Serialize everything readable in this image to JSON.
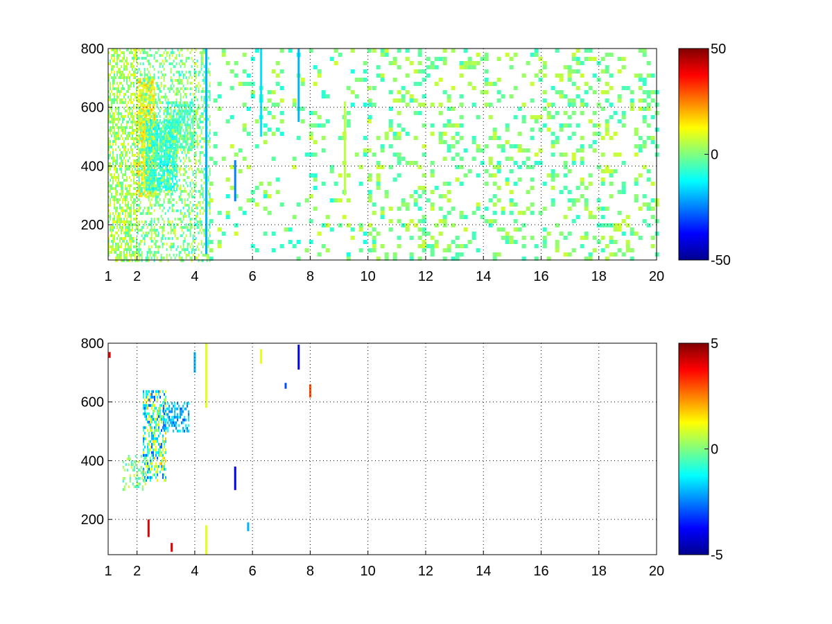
{
  "chart_data": [
    {
      "type": "heatmap",
      "title": "",
      "xlabel": "",
      "ylabel": "",
      "xlim": [
        1,
        20
      ],
      "ylim": [
        80,
        800
      ],
      "x_ticks": [
        1,
        2,
        4,
        6,
        8,
        10,
        12,
        14,
        16,
        18,
        20
      ],
      "x_tick_labels": [
        "1",
        "2",
        "4",
        "6",
        "8",
        "10",
        "12",
        "14",
        "16",
        "18",
        "20"
      ],
      "y_ticks": [
        200,
        400,
        600,
        800
      ],
      "y_tick_labels": [
        "200",
        "400",
        "600",
        "800"
      ],
      "grid": true,
      "colormap": "jet",
      "clim": [
        -50,
        50
      ],
      "colorbar_ticks": [
        -50,
        0,
        50
      ],
      "colorbar_tick_labels": [
        "-50",
        "0",
        "50"
      ],
      "dense_regions": [
        {
          "x": [
            1.0,
            2.0
          ],
          "y": [
            80,
            800
          ],
          "value_range": [
            -5,
            12
          ],
          "density": 0.55
        },
        {
          "x": [
            2.0,
            2.6
          ],
          "y": [
            300,
            700
          ],
          "value_range": [
            5,
            20
          ],
          "density": 0.8
        },
        {
          "x": [
            2.3,
            3.4
          ],
          "y": [
            320,
            560
          ],
          "value_range": [
            -15,
            -5
          ],
          "density": 0.75
        },
        {
          "x": [
            3.0,
            4.0
          ],
          "y": [
            460,
            620
          ],
          "value_range": [
            -12,
            -4
          ],
          "density": 0.6
        },
        {
          "x": [
            2.0,
            4.5
          ],
          "y": [
            80,
            800
          ],
          "value_range": [
            -10,
            10
          ],
          "density": 0.35
        },
        {
          "x": [
            4.5,
            10.0
          ],
          "y": [
            80,
            800
          ],
          "value_range": [
            -10,
            8
          ],
          "density": 0.12
        },
        {
          "x": [
            10.0,
            20.0
          ],
          "y": [
            80,
            800
          ],
          "value_range": [
            -8,
            8
          ],
          "density": 0.2
        }
      ],
      "streaks": [
        {
          "x": 4.4,
          "y": [
            100,
            800
          ],
          "value": -20
        },
        {
          "x": 6.3,
          "y": [
            500,
            800
          ],
          "value": -15
        },
        {
          "x": 7.6,
          "y": [
            550,
            800
          ],
          "value": -20
        },
        {
          "x": 9.2,
          "y": [
            300,
            620
          ],
          "value": 6
        },
        {
          "x": 5.4,
          "y": [
            280,
            420
          ],
          "value": -25
        }
      ]
    },
    {
      "type": "heatmap",
      "title": "",
      "xlabel": "",
      "ylabel": "",
      "xlim": [
        1,
        20
      ],
      "ylim": [
        80,
        800
      ],
      "x_ticks": [
        1,
        2,
        4,
        6,
        8,
        10,
        12,
        14,
        16,
        18,
        20
      ],
      "x_tick_labels": [
        "1",
        "2",
        "4",
        "6",
        "8",
        "10",
        "12",
        "14",
        "16",
        "18",
        "20"
      ],
      "y_ticks": [
        200,
        400,
        600,
        800
      ],
      "y_tick_labels": [
        "200",
        "400",
        "600",
        "800"
      ],
      "grid": true,
      "colormap": "jet",
      "clim": [
        -5,
        5
      ],
      "colorbar_ticks": [
        -5,
        0,
        5
      ],
      "colorbar_tick_labels": [
        "-5",
        "0",
        "5"
      ],
      "dense_regions": [
        {
          "x": [
            2.2,
            3.0
          ],
          "y": [
            330,
            640
          ],
          "value_range": [
            -3,
            2
          ],
          "density": 0.55
        },
        {
          "x": [
            1.5,
            2.3
          ],
          "y": [
            300,
            420
          ],
          "value_range": [
            -1,
            1
          ],
          "density": 0.3
        },
        {
          "x": [
            2.9,
            3.8
          ],
          "y": [
            500,
            600
          ],
          "value_range": [
            -3,
            -1
          ],
          "density": 0.5
        }
      ],
      "streaks": [
        {
          "x": 4.4,
          "y": [
            580,
            800
          ],
          "value": 1
        },
        {
          "x": 4.0,
          "y": [
            700,
            770
          ],
          "value": -2
        },
        {
          "x": 5.4,
          "y": [
            300,
            380
          ],
          "value": -4
        },
        {
          "x": 5.85,
          "y": [
            160,
            190
          ],
          "value": -2
        },
        {
          "x": 6.3,
          "y": [
            730,
            780
          ],
          "value": 1
        },
        {
          "x": 7.15,
          "y": [
            645,
            665
          ],
          "value": -3
        },
        {
          "x": 7.6,
          "y": [
            710,
            795
          ],
          "value": -4
        },
        {
          "x": 8.0,
          "y": [
            615,
            660
          ],
          "value": 3
        },
        {
          "x": 4.4,
          "y": [
            80,
            180
          ],
          "value": 1
        },
        {
          "x": 2.4,
          "y": [
            140,
            200
          ],
          "value": 4
        },
        {
          "x": 3.2,
          "y": [
            90,
            120
          ],
          "value": 4
        },
        {
          "x": 1.05,
          "y": [
            750,
            770
          ],
          "value": 4
        }
      ]
    }
  ]
}
